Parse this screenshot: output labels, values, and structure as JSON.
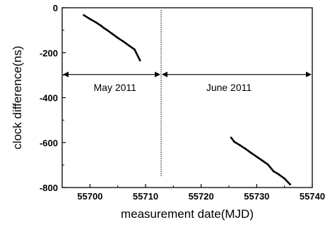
{
  "chart_data": {
    "type": "line",
    "xlabel": "measurement date(MJD)",
    "ylabel": "clock difference(ns)",
    "xlim": [
      55695,
      55740
    ],
    "ylim": [
      -800,
      0
    ],
    "x_ticks": [
      55700,
      55710,
      55720,
      55730,
      55740
    ],
    "y_ticks": [
      0,
      -200,
      -400,
      -600,
      -800
    ],
    "x_tick_labels": [
      "55700",
      "55710",
      "55720",
      "55730",
      "55740"
    ],
    "y_tick_labels": [
      "0",
      "-200",
      "-400",
      "-600",
      "-800"
    ],
    "divider_x": 55712.8,
    "annotations": [
      {
        "text": "May 2011",
        "x": 55704.5,
        "y": -355
      },
      {
        "text": "June 2011",
        "x": 55725,
        "y": -355
      }
    ],
    "range_arrows": [
      {
        "from": 55695,
        "to": 55712.8,
        "y": -297
      },
      {
        "from": 55712.8,
        "to": 55740,
        "y": -297
      }
    ],
    "series": [
      {
        "x": [
          55698.9,
          55700,
          55701,
          55702,
          55702.5,
          55703,
          55704,
          55705,
          55706,
          55707,
          55708,
          55709
        ],
        "y": [
          -33,
          -50,
          -64,
          -80,
          -90,
          -98,
          -116,
          -134,
          -150,
          -168,
          -185,
          -234
        ]
      },
      {
        "x": [
          55725.4,
          55726,
          55727,
          55728,
          55729,
          55730,
          55731,
          55732,
          55733,
          55734,
          55735,
          55736
        ],
        "y": [
          -578,
          -597,
          -612,
          -628,
          -646,
          -663,
          -680,
          -697,
          -727,
          -742,
          -760,
          -786
        ]
      }
    ]
  }
}
